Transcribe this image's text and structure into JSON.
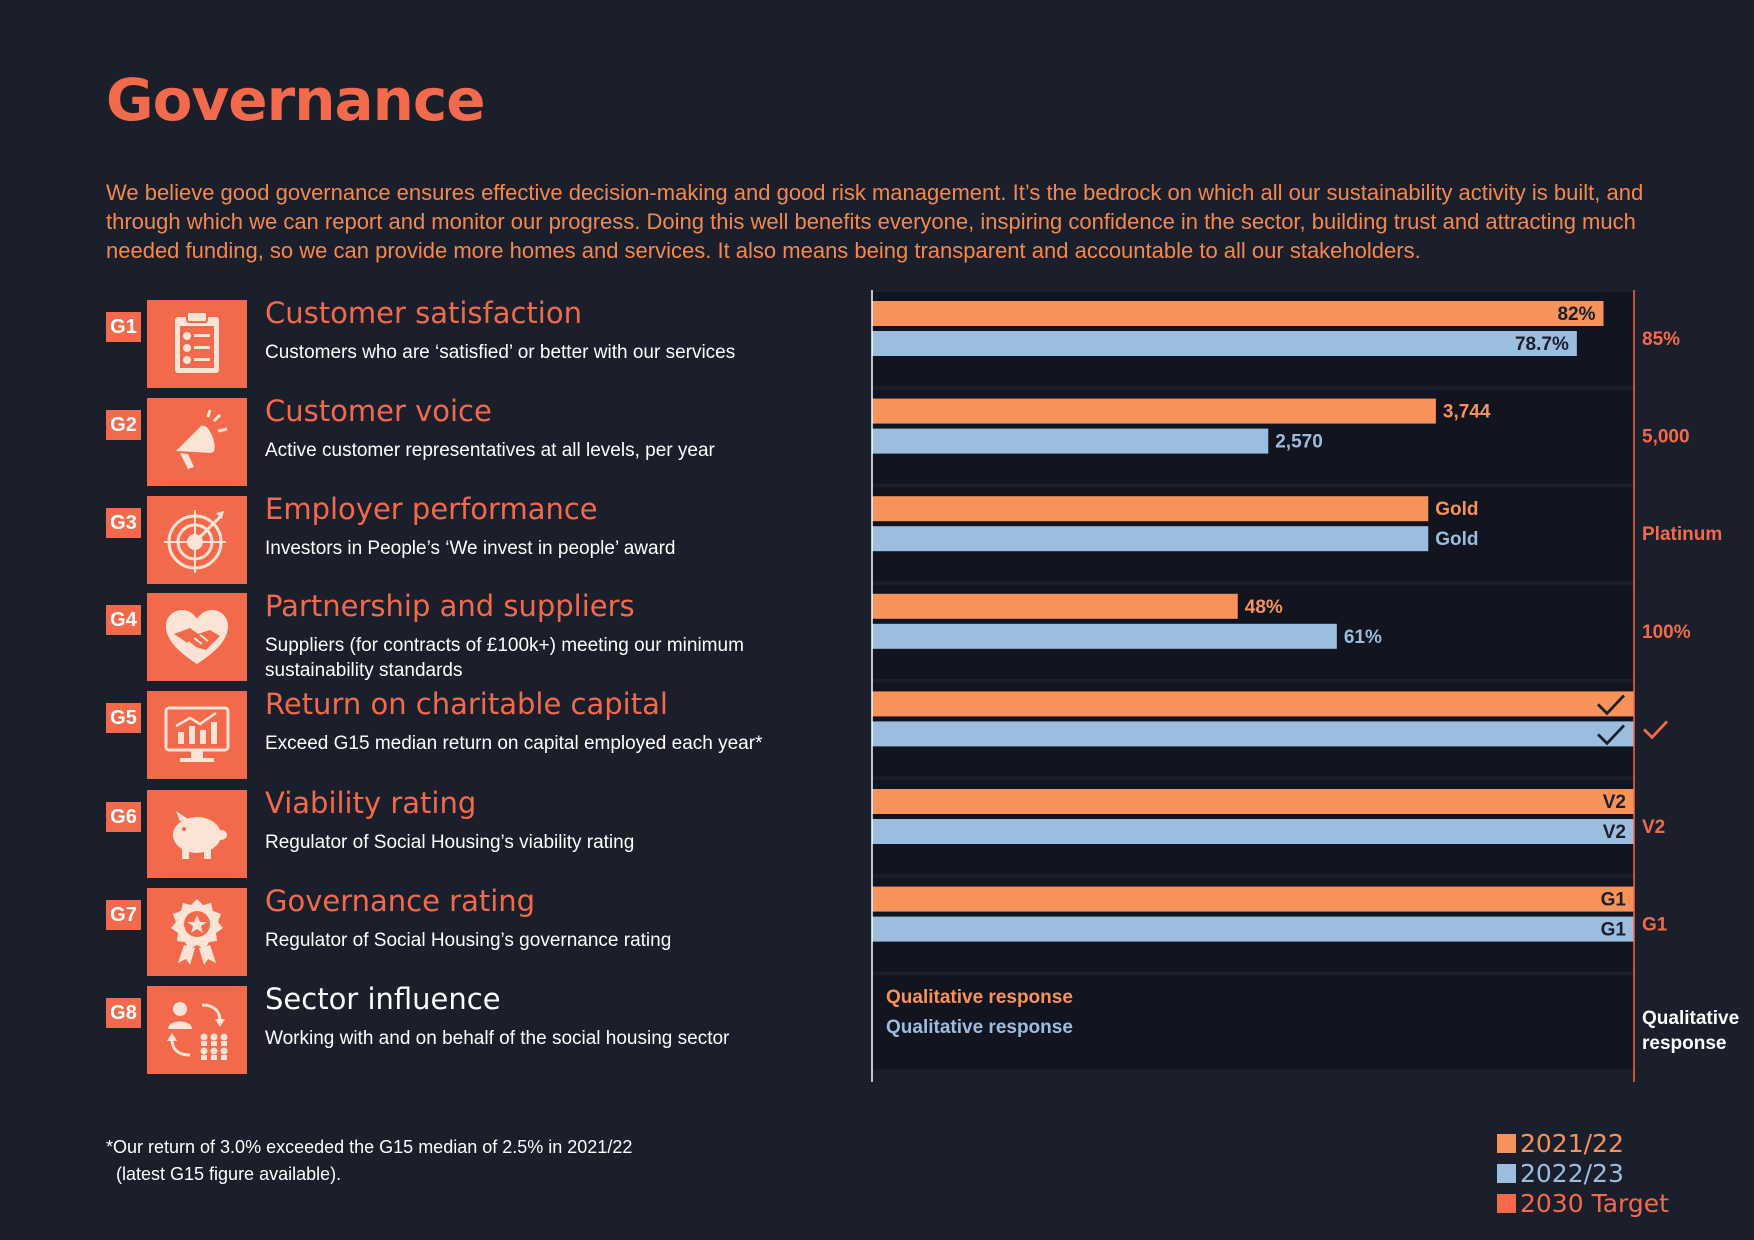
{
  "title": "Governance",
  "intro": "We believe good governance ensures effective decision-making and good risk management. It’s the bedrock on which all our sustainability activity is built, and through which we can report and monitor our progress. Doing this well benefits everyone, inspiring confidence in the sector, building trust and attracting much needed funding, so we can provide more homes and services. It also means being transparent and accountable to all our stakeholders.",
  "kpis": [
    {
      "id": "G1",
      "title": "Customer satisfaction",
      "desc": "Customers who are ‘satisfied’ or better with our services",
      "icon": "clipboard-checklist-icon"
    },
    {
      "id": "G2",
      "title": "Customer voice",
      "desc": "Active customer representatives at all levels, per year",
      "icon": "megaphone-icon"
    },
    {
      "id": "G3",
      "title": "Employer performance",
      "desc": "Investors in People’s ‘We invest in people’ award",
      "icon": "target-icon"
    },
    {
      "id": "G4",
      "title": "Partnership and suppliers",
      "desc": "Suppliers (for contracts of £100k+) meeting our minimum sustainability standards",
      "icon": "heart-handshake-icon"
    },
    {
      "id": "G5",
      "title": "Return on charitable capital",
      "desc": "Exceed G15 median return on capital employed each year*",
      "icon": "monitor-chart-icon"
    },
    {
      "id": "G6",
      "title": "Viability rating",
      "desc": "Regulator of Social Housing’s viability rating",
      "icon": "piggy-bank-icon"
    },
    {
      "id": "G7",
      "title": "Governance rating",
      "desc": "Regulator of Social Housing’s governance rating",
      "icon": "award-rosette-icon"
    },
    {
      "id": "G8",
      "title": "Sector influence",
      "desc": "Working with and on behalf of the social housing sector",
      "icon": "people-network-icon"
    }
  ],
  "chart_data": {
    "type": "bar",
    "orientation": "horizontal",
    "categories": [
      "G1",
      "G2",
      "G3",
      "G4",
      "G5",
      "G6",
      "G7",
      "G8"
    ],
    "series": [
      {
        "name": "2021/22",
        "color": "#f6925a",
        "label_color": "#f6925a",
        "values": [
          0.96,
          0.74,
          0.73,
          0.48,
          1.0,
          1.0,
          1.0,
          null
        ],
        "labels": [
          "82%",
          "3,744",
          "Gold",
          "48%",
          "✓",
          "V2",
          "G1",
          "Qualitative response"
        ],
        "label_inside": [
          true,
          false,
          false,
          false,
          true,
          true,
          true,
          false
        ]
      },
      {
        "name": "2022/23",
        "color": "#9bbde0",
        "label_color": "#9bbde0",
        "values": [
          0.925,
          0.52,
          0.73,
          0.61,
          1.0,
          1.0,
          1.0,
          null
        ],
        "labels": [
          "78.7%",
          "2,570",
          "Gold",
          "61%",
          "✓",
          "V2",
          "G1",
          "Qualitative response"
        ],
        "label_inside": [
          true,
          false,
          false,
          false,
          true,
          true,
          true,
          false
        ]
      }
    ],
    "targets": {
      "name": "2030 Target",
      "color": "#f26a4b",
      "labels": [
        "85%",
        "5,000",
        "Platinum",
        "100%",
        "✓",
        "V2",
        "G1",
        "Qualitative response"
      ]
    },
    "xlim": [
      0,
      1
    ],
    "legend": "bottom-right"
  },
  "legend": [
    {
      "label": "2021/22",
      "color": "#f6925a"
    },
    {
      "label": "2022/23",
      "color": "#9bbde0"
    },
    {
      "label": "2030 Target",
      "color": "#f26a4b"
    }
  ],
  "footnote": {
    "line1": "*Our return of 3.0% exceeded the G15 median of 2.5% in 2021/22",
    "line2": "(latest G15 figure available)."
  }
}
